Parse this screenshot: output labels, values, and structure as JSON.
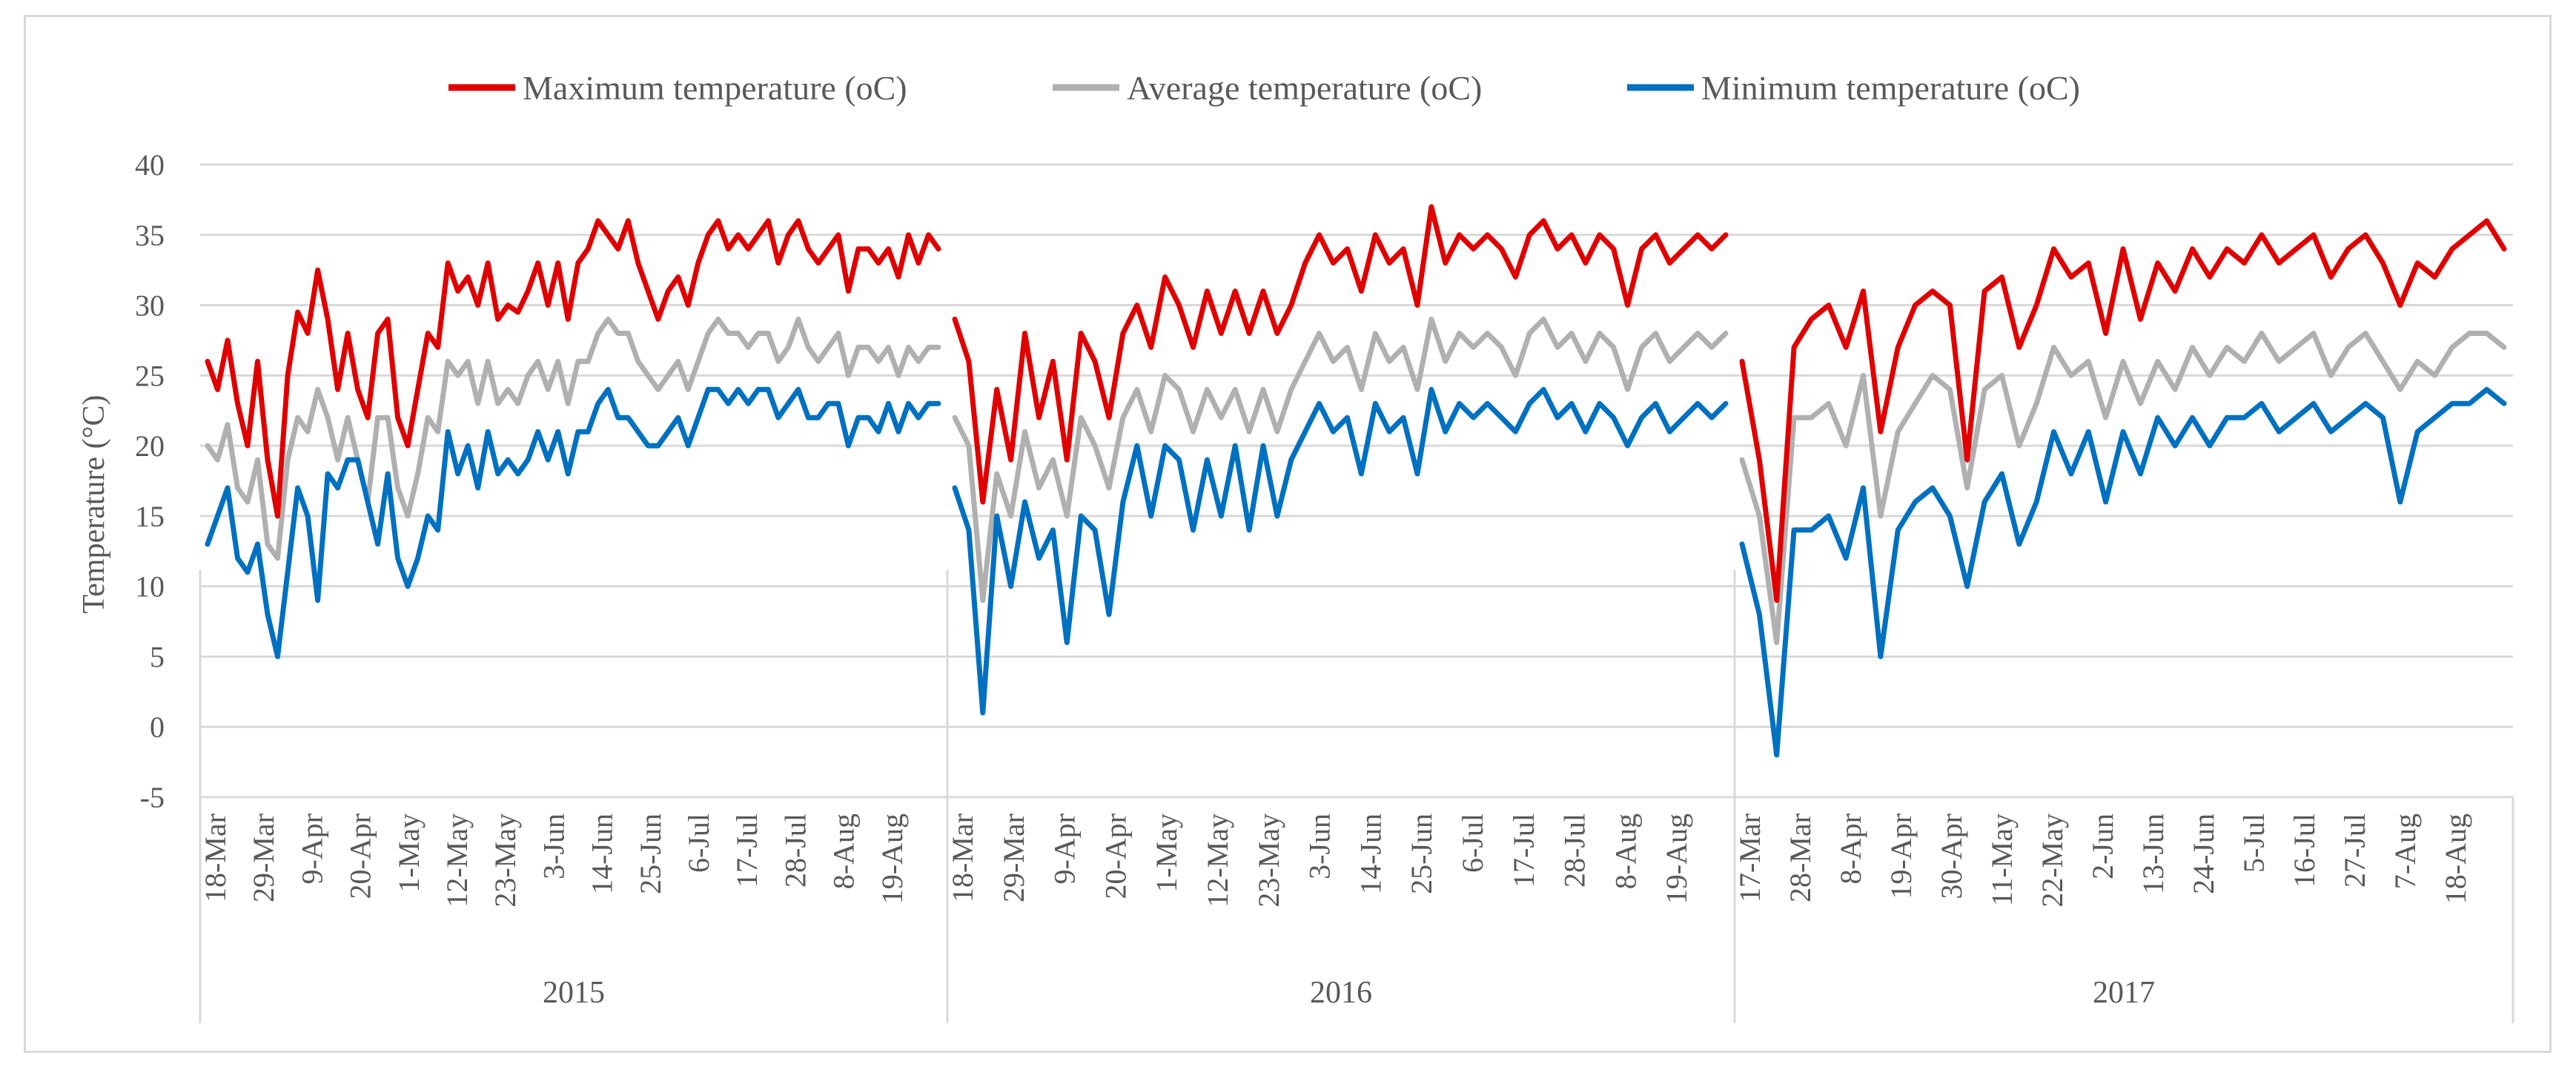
{
  "chart_data": {
    "type": "line",
    "title": "",
    "ylabel": "Temperature (°C)",
    "xlabel": "",
    "ylim": [
      -5,
      40
    ],
    "yticks": [
      40,
      35,
      30,
      25,
      20,
      15,
      10,
      5,
      0,
      -5
    ],
    "legend_position": "top-center",
    "colors": {
      "max": "#e00000",
      "avg": "#b0b0b0",
      "min": "#0070c0",
      "grid": "#d9d9d9",
      "text": "#595959"
    },
    "years": [
      {
        "label": "2015",
        "ticks": [
          "18-Mar",
          "29-Mar",
          "9-Apr",
          "20-Apr",
          "1-May",
          "12-May",
          "23-May",
          "3-Jun",
          "14-Jun",
          "25-Jun",
          "6-Jul",
          "17-Jul",
          "28-Jul",
          "8-Aug",
          "19-Aug"
        ],
        "series": {
          "max": [
            26,
            24,
            27.5,
            23,
            20,
            26,
            19,
            15,
            25,
            29.5,
            28,
            32.5,
            29,
            24,
            28,
            24,
            22,
            28,
            29,
            22,
            20,
            24,
            28,
            27,
            33,
            31,
            32,
            30,
            33,
            29,
            30,
            29.5,
            31,
            33,
            30,
            33,
            29,
            33,
            34,
            36,
            35,
            34,
            36,
            33,
            31,
            29,
            31,
            32,
            30,
            33,
            35,
            36,
            34,
            35,
            34,
            35,
            36,
            33,
            35,
            36,
            34,
            33,
            34,
            35,
            31,
            34,
            34,
            33,
            34,
            32,
            35,
            33,
            35,
            34
          ],
          "avg": [
            20,
            19,
            21.5,
            17,
            16,
            19,
            13,
            12,
            19,
            22,
            21,
            24,
            22,
            19,
            22,
            19,
            16,
            22,
            22,
            17,
            15,
            18,
            22,
            21,
            26,
            25,
            26,
            23,
            26,
            23,
            24,
            23,
            25,
            26,
            24,
            26,
            23,
            26,
            26,
            28,
            29,
            28,
            28,
            26,
            25,
            24,
            25,
            26,
            24,
            26,
            28,
            29,
            28,
            28,
            27,
            28,
            28,
            26,
            27,
            29,
            27,
            26,
            27,
            28,
            25,
            27,
            27,
            26,
            27,
            25,
            27,
            26,
            27,
            27
          ],
          "min": [
            13,
            15,
            17,
            12,
            11,
            13,
            8,
            5,
            11,
            17,
            15,
            9,
            18,
            17,
            19,
            19,
            16,
            13,
            18,
            12,
            10,
            12,
            15,
            14,
            21,
            18,
            20,
            17,
            21,
            18,
            19,
            18,
            19,
            21,
            19,
            21,
            18,
            21,
            21,
            23,
            24,
            22,
            22,
            21,
            20,
            20,
            21,
            22,
            20,
            22,
            24,
            24,
            23,
            24,
            23,
            24,
            24,
            22,
            23,
            24,
            22,
            22,
            23,
            23,
            20,
            22,
            22,
            21,
            23,
            21,
            23,
            22,
            23,
            23
          ]
        }
      },
      {
        "label": "2016",
        "ticks": [
          "18-Mar",
          "29-Mar",
          "9-Apr",
          "20-Apr",
          "1-May",
          "12-May",
          "23-May",
          "3-Jun",
          "14-Jun",
          "25-Jun",
          "6-Jul",
          "17-Jul",
          "28-Jul",
          "8-Aug",
          "19-Aug"
        ],
        "series": {
          "max": [
            29,
            26,
            16,
            24,
            19,
            28,
            22,
            26,
            19,
            28,
            26,
            22,
            28,
            30,
            27,
            32,
            30,
            27,
            31,
            28,
            31,
            28,
            31,
            28,
            30,
            33,
            35,
            33,
            34,
            31,
            35,
            33,
            34,
            30,
            37,
            33,
            35,
            34,
            35,
            34,
            32,
            35,
            36,
            34,
            35,
            33,
            35,
            34,
            30,
            34,
            35,
            33,
            34,
            35,
            34,
            35
          ],
          "avg": [
            22,
            20,
            9,
            18,
            15,
            21,
            17,
            19,
            15,
            22,
            20,
            17,
            22,
            24,
            21,
            25,
            24,
            21,
            24,
            22,
            24,
            21,
            24,
            21,
            24,
            26,
            28,
            26,
            27,
            24,
            28,
            26,
            27,
            24,
            29,
            26,
            28,
            27,
            28,
            27,
            25,
            28,
            29,
            27,
            28,
            26,
            28,
            27,
            24,
            27,
            28,
            26,
            27,
            28,
            27,
            28
          ],
          "min": [
            17,
            14,
            1,
            15,
            10,
            16,
            12,
            14,
            6,
            15,
            14,
            8,
            16,
            20,
            15,
            20,
            19,
            14,
            19,
            15,
            20,
            14,
            20,
            15,
            19,
            21,
            23,
            21,
            22,
            18,
            23,
            21,
            22,
            18,
            24,
            21,
            23,
            22,
            23,
            22,
            21,
            23,
            24,
            22,
            23,
            21,
            23,
            22,
            20,
            22,
            23,
            21,
            22,
            23,
            22,
            23
          ]
        }
      },
      {
        "label": "2017",
        "ticks": [
          "17-Mar",
          "28-Mar",
          "8-Apr",
          "19-Apr",
          "30-Apr",
          "11-May",
          "22-May",
          "2-Jun",
          "13-Jun",
          "24-Jun",
          "5-Jul",
          "16-Jul",
          "27-Jul",
          "7-Aug",
          "18-Aug"
        ],
        "series": {
          "max": [
            26,
            19,
            9,
            27,
            29,
            30,
            27,
            31,
            21,
            27,
            30,
            31,
            30,
            19,
            31,
            32,
            27,
            30,
            34,
            32,
            33,
            28,
            34,
            29,
            33,
            31,
            34,
            32,
            34,
            33,
            35,
            33,
            34,
            35,
            32,
            34,
            35,
            33,
            30,
            33,
            32,
            34,
            35,
            36,
            34
          ],
          "avg": [
            19,
            15,
            6,
            22,
            22,
            23,
            20,
            25,
            15,
            21,
            23,
            25,
            24,
            17,
            24,
            25,
            20,
            23,
            27,
            25,
            26,
            22,
            26,
            23,
            26,
            24,
            27,
            25,
            27,
            26,
            28,
            26,
            27,
            28,
            25,
            27,
            28,
            26,
            24,
            26,
            25,
            27,
            28,
            28,
            27
          ],
          "min": [
            13,
            8,
            -2,
            14,
            14,
            15,
            12,
            17,
            5,
            14,
            16,
            17,
            15,
            10,
            16,
            18,
            13,
            16,
            21,
            18,
            21,
            16,
            21,
            18,
            22,
            20,
            22,
            20,
            22,
            22,
            23,
            21,
            22,
            23,
            21,
            22,
            23,
            22,
            16,
            21,
            22,
            23,
            23,
            24,
            23
          ]
        }
      }
    ],
    "legend": [
      {
        "key": "max",
        "label": "Maximum temperature (oC)"
      },
      {
        "key": "avg",
        "label": "Average temperature (oC)"
      },
      {
        "key": "min",
        "label": "Minimum temperature (oC)"
      }
    ]
  }
}
